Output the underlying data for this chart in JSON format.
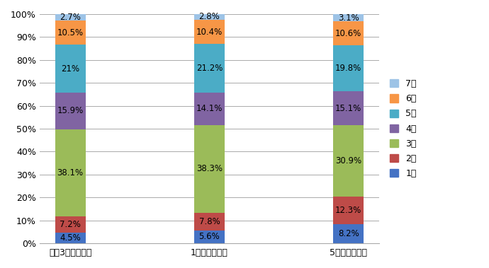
{
  "categories": [
    "令和3年の構成比",
    "1年前の構成比",
    "5年前の構成比"
  ],
  "series": [
    {
      "label": "1級",
      "values": [
        4.5,
        5.6,
        8.2
      ],
      "color": "#4472C4"
    },
    {
      "label": "2級",
      "values": [
        7.2,
        7.8,
        12.3
      ],
      "color": "#BE4B48"
    },
    {
      "label": "3級",
      "values": [
        38.1,
        38.3,
        30.9
      ],
      "color": "#9BBB59"
    },
    {
      "label": "4級",
      "values": [
        15.9,
        14.1,
        15.1
      ],
      "color": "#8064A2"
    },
    {
      "label": "5級",
      "values": [
        21.0,
        21.2,
        19.8
      ],
      "color": "#4BACC6"
    },
    {
      "label": "6級",
      "values": [
        10.5,
        10.4,
        10.6
      ],
      "color": "#F79646"
    },
    {
      "label": "7級",
      "values": [
        2.7,
        2.8,
        3.1
      ],
      "color": "#9DC3E6"
    }
  ],
  "labels_formatted": [
    [
      "4.5%",
      "5.6%",
      "8.2%"
    ],
    [
      "7.2%",
      "7.8%",
      "12.3%"
    ],
    [
      "38.1%",
      "38.3%",
      "30.9%"
    ],
    [
      "15.9%",
      "14.1%",
      "15.1%"
    ],
    [
      "21%",
      "21.2%",
      "19.8%"
    ],
    [
      "10.5%",
      "10.4%",
      "10.6%"
    ],
    [
      "2.7%",
      "2.8%",
      "3.1%"
    ]
  ],
  "ylim": [
    0,
    100
  ],
  "yticks": [
    0,
    10,
    20,
    30,
    40,
    50,
    60,
    70,
    80,
    90,
    100
  ],
  "ytick_labels": [
    "0%",
    "10%",
    "20%",
    "30%",
    "40%",
    "50%",
    "60%",
    "70%",
    "80%",
    "90%",
    "100%"
  ],
  "bar_width": 0.22,
  "figsize": [
    6.9,
    3.79
  ],
  "dpi": 100,
  "grid_color": "#AAAAAA",
  "label_fontsize": 8.5,
  "tick_fontsize": 9,
  "legend_fontsize": 9,
  "text_color": "#000000",
  "background_color": "#FFFFFF"
}
